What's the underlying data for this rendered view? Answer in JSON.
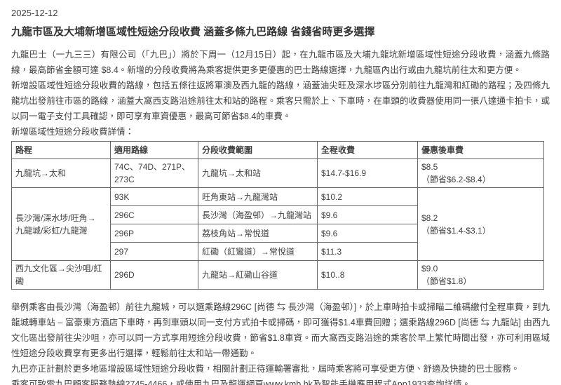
{
  "date": "2025-12-12",
  "title": "九龍市區及大埔新增區域性短途分段收費 涵蓋多條九巴路線 省錢省時更多選擇",
  "paragraphs": {
    "p1": "九龍巴士（一九三三）有限公司（「九巴」）將於下周一（12月15日）起，在九龍市區及大埔九龍坑新增區域性短途分段收費，涵蓋九條路線，最高節省金額可達 $8.4。新增的分段收費將為乘客提供更多更優惠的巴士路線選擇，九龍區內出行或由九龍坑前往太和更方便。",
    "p2": "新增設區域性短途分段收費的路線，包括五條往返將軍澳及西九龍的路線，涵蓋油尖旺及深水埗區分別前往九龍灣和紅磡的路程；及四條九龍坑出發前往市區的路線，涵蓋大窩西支路沿途前往太和站的路程。乘客只需於上、下車時，在車頭的收費器使用同一張八達通卡拍卡，或以同一電子支付工具確認，即可享有車資優惠，最高可節省$8.4的車費。",
    "p3": "新增區域性短途分段收費詳情：",
    "p4": "舉例乘客由長沙灣（海盈邨）前往九龍城，可以選乘路線296C [尚德 ⇆ 長沙灣（海盈邨）]，於上車時拍卡或掃瞄二維碼繳付全程車費，到九龍城轉車站 – 富豪東方酒店下車時，再到車頭以同一支付方式拍卡或掃碼，即可獲得$1.4車費回贈；選乘路線296D [尚德 ⇆ 九龍站] 由西九文化區出發前往尖沙咀，亦可以同一方式享用短途分段收費，節省$1.8車資。而大窩西支路沿途的乘客於早上繁忙時間出發，亦可利用區域性短途分段收費享有更多出行選擇，輕鬆前往太和站一帶通勤。",
    "p5": "九巴亦正計劃於更多地區增設區域性短途分段收費，相關計劃正待運輸署審批，屆時乘客將可享受更方便、舒適及快捷的巴士服務。",
    "p6": "乘客可致電九巴顧客服務熱線2745-4466，或使用九巴及龍運網頁www.kmb.hk及智能手機應用程式App1933查詢詳情。"
  },
  "table": {
    "headers": [
      "路程",
      "適用路線",
      "分段收費範圍",
      "全程收費",
      "優惠後車費"
    ],
    "group1": {
      "route": "九龍坑→太和",
      "lines": "74C、74D、271P、273C",
      "section": "九龍坑→太和站",
      "full_fare": "$14.7-$16.9",
      "discount_main": "$8.5",
      "discount_note": "（節省$6.2-$8.4）"
    },
    "group2": {
      "route_line1": "長沙灣/深水埗/旺角→",
      "route_line2": "九龍城/彩虹/九龍灣",
      "discount_main": "$8.2",
      "discount_note": "（節省$1.4-$3.1）",
      "rows": [
        {
          "line": "93K",
          "section": "旺角東站→九龍灣站",
          "full_fare": "$10.2"
        },
        {
          "line": "296C",
          "section": "長沙灣（海盈邨）→九龍灣站",
          "full_fare": "$9.6"
        },
        {
          "line": "296P",
          "section": "荔枝角站→常悅道",
          "full_fare": "$9.6"
        },
        {
          "line": "297",
          "section": "紅磡（紅鸞道）→常悅道",
          "full_fare": "$11.3"
        }
      ]
    },
    "group3": {
      "route": "西九文化區→尖沙咀/紅磡",
      "line": "296D",
      "section": "九龍站→紅磡山谷道",
      "full_fare": "$10..8",
      "discount_main": "$9.0",
      "discount_note": "（節省$1.8）"
    }
  }
}
